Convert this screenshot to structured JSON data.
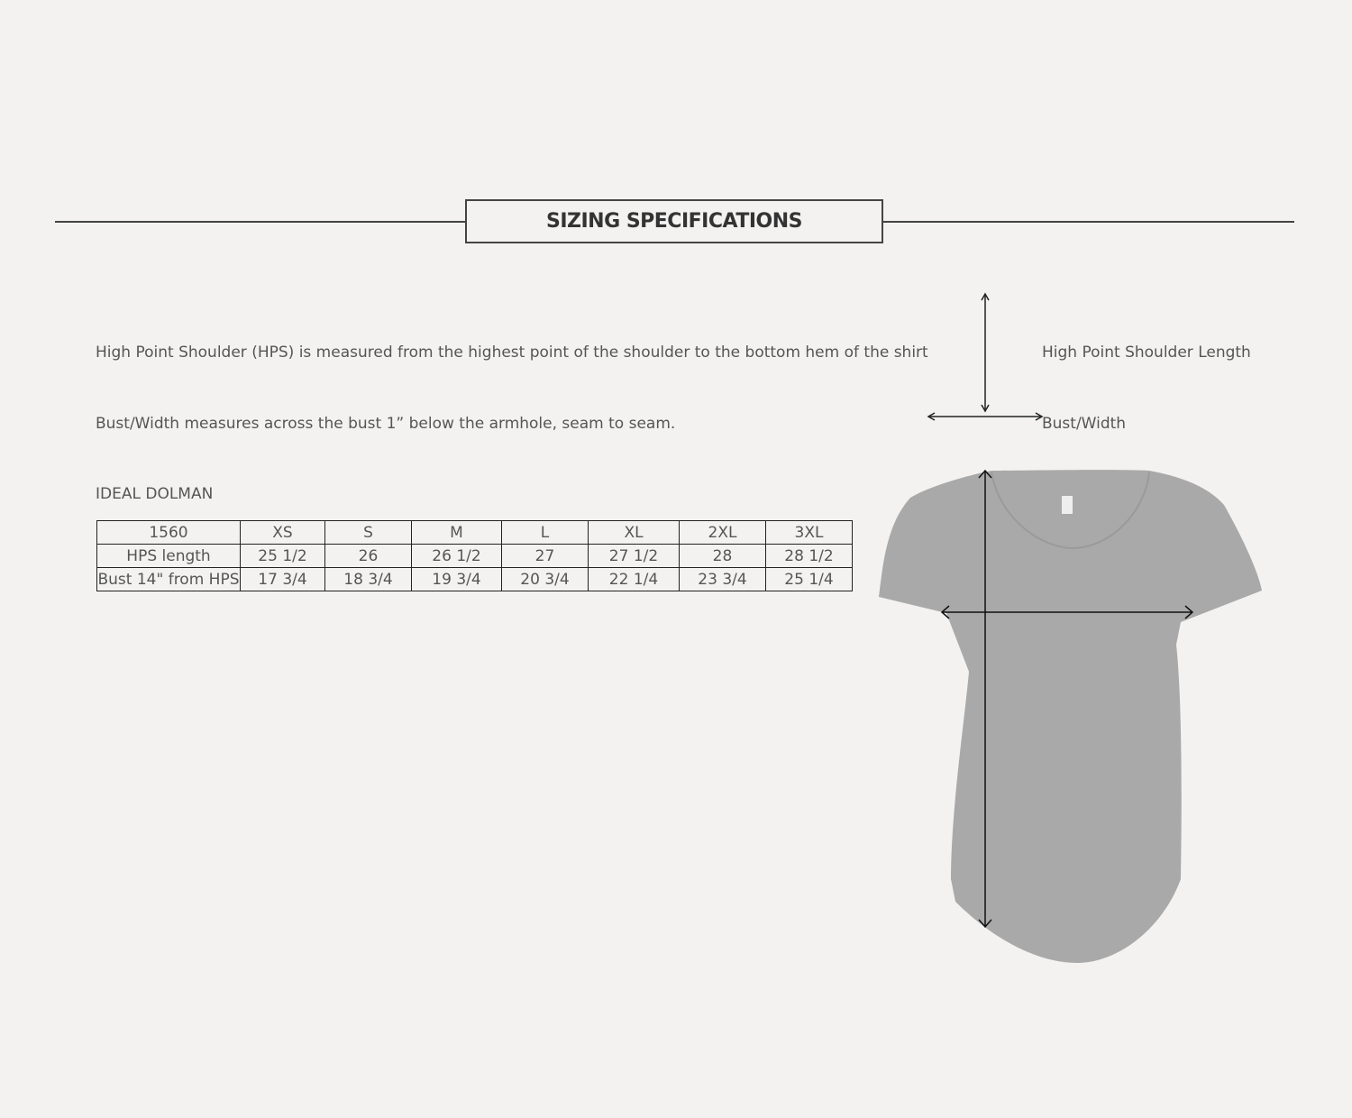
{
  "header": {
    "title": "SIZING SPECIFICATIONS"
  },
  "descriptions": {
    "hps": "High Point Shoulder (HPS) is measured from the highest point of the shoulder to the bottom hem of the shirt",
    "bust": "Bust/Width measures across the bust 1” below the armhole, seam to seam."
  },
  "legend": {
    "hps_label": "High Point Shoulder Length",
    "bust_label": "Bust/Width"
  },
  "table": {
    "title": "IDEAL DOLMAN",
    "header": [
      "1560",
      "XS",
      "S",
      "M",
      "L",
      "XL",
      "2XL",
      "3XL"
    ],
    "rows": [
      [
        "HPS length",
        "25 1/2",
        "26",
        "26  1/2",
        "27",
        "27 1/2",
        "28",
        "28 1/2"
      ],
      [
        "Bust 14\" from HPS",
        "17 3/4",
        "18 3/4",
        "19 3/4",
        "20 3/4",
        "22 1/4",
        "23 3/4",
        "25 1/4"
      ]
    ]
  },
  "colors": {
    "background": "#f4f2f1",
    "shirt": "#a9a9a9",
    "lines": "#444444"
  }
}
